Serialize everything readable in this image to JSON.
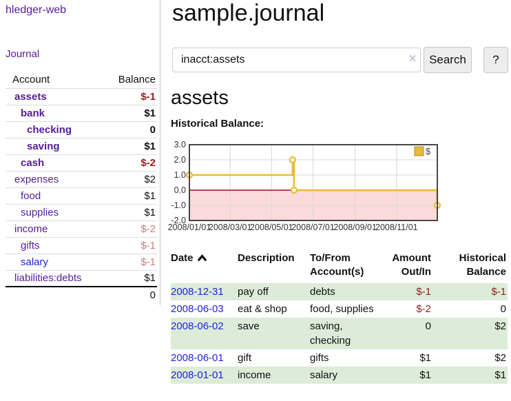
{
  "app": {
    "title": "hledger-web"
  },
  "nav": {
    "journal": "Journal"
  },
  "sidebar": {
    "headers": {
      "account": "Account",
      "balance": "Balance"
    },
    "accounts": [
      {
        "name": "assets",
        "depth": 0,
        "bold": true,
        "balance": "$-1",
        "neg": "strong",
        "link_variant": "purple"
      },
      {
        "name": "bank",
        "depth": 1,
        "bold": true,
        "balance": "$1",
        "neg": "",
        "link_variant": "purple"
      },
      {
        "name": "checking",
        "depth": 2,
        "bold": true,
        "balance": "0",
        "neg": "",
        "link_variant": "purple"
      },
      {
        "name": "saving",
        "depth": 2,
        "bold": true,
        "balance": "$1",
        "neg": "",
        "link_variant": "purple"
      },
      {
        "name": "cash",
        "depth": 1,
        "bold": true,
        "balance": "$-2",
        "neg": "strong",
        "link_variant": "purple"
      },
      {
        "name": "expenses",
        "depth": 0,
        "bold": false,
        "balance": "$2",
        "neg": "",
        "link_variant": "purple"
      },
      {
        "name": "food",
        "depth": 1,
        "bold": false,
        "balance": "$1",
        "neg": "",
        "link_variant": "purple"
      },
      {
        "name": "supplies",
        "depth": 1,
        "bold": false,
        "balance": "$1",
        "neg": "",
        "link_variant": "purple"
      },
      {
        "name": "income",
        "depth": 0,
        "bold": false,
        "balance": "$-2",
        "neg": "soft",
        "link_variant": "purple"
      },
      {
        "name": "gifts",
        "depth": 1,
        "bold": false,
        "balance": "$-1",
        "neg": "soft",
        "link_variant": "purple"
      },
      {
        "name": "salary",
        "depth": 1,
        "bold": false,
        "balance": "$-1",
        "neg": "soft",
        "link_variant": "blue"
      },
      {
        "name": "liabilities:debts",
        "depth": 0,
        "bold": false,
        "balance": "$1",
        "neg": "",
        "link_variant": "purple"
      }
    ],
    "total": "0"
  },
  "header": {
    "title": "sample.journal"
  },
  "search": {
    "value": "inacct:assets",
    "clear_icon": "×",
    "button": "Search",
    "help_button": "?"
  },
  "account_page": {
    "heading": "assets",
    "chart_label": "Historical Balance:"
  },
  "chart_data": {
    "type": "line",
    "title": "Historical Balance",
    "legend": [
      {
        "label": "$",
        "color": "#e9bb32"
      }
    ],
    "legend_position": "top-right",
    "grid": true,
    "ylim": [
      -2,
      3
    ],
    "y_ticks": [
      3,
      2,
      1,
      0,
      -1,
      -2
    ],
    "y_tick_labels": [
      "3.0",
      "2.0",
      "1.0",
      "0.0",
      "-1.0",
      "-2.0"
    ],
    "x_range_days": [
      0,
      365
    ],
    "x_tick_days": [
      0,
      60,
      121,
      182,
      244,
      305
    ],
    "x_tick_labels": [
      "2008/01/01",
      "2008/03/01",
      "2008/05/01",
      "2008/07/01",
      "2008/09/01",
      "2008/11/01"
    ],
    "series": [
      {
        "name": "$",
        "color": "#e9bb32",
        "step": true,
        "points": [
          {
            "date": "2008-01-01",
            "day": 0,
            "value": 1
          },
          {
            "date": "2008-06-01",
            "day": 152,
            "value": 2
          },
          {
            "date": "2008-06-03",
            "day": 154,
            "value": 0
          },
          {
            "date": "2008-12-31",
            "day": 365,
            "value": -1
          }
        ]
      }
    ],
    "negative_region": {
      "fill": "#fadadb",
      "zero_line_color": "#9c1016"
    },
    "frame_color": "#474747",
    "grid_color": "#d8d8d8"
  },
  "register": {
    "headers": {
      "date": "Date",
      "description": "Description",
      "accounts": "To/From Account(s)",
      "amount": "Amount Out/In",
      "balance": "Historical Balance"
    },
    "rows": [
      {
        "date": "2008-12-31",
        "description": "pay off",
        "accounts": "debts",
        "amount": "$-1",
        "amount_neg": true,
        "balance": "$-1",
        "balance_neg": true
      },
      {
        "date": "2008-06-03",
        "description": "eat & shop",
        "accounts": "food, supplies",
        "amount": "$-2",
        "amount_neg": true,
        "balance": "0",
        "balance_neg": false
      },
      {
        "date": "2008-06-02",
        "description": "save",
        "accounts": "saving, checking",
        "amount": "0",
        "amount_neg": false,
        "balance": "$2",
        "balance_neg": false
      },
      {
        "date": "2008-06-01",
        "description": "gift",
        "accounts": "gifts",
        "amount": "$1",
        "amount_neg": false,
        "balance": "$2",
        "balance_neg": false
      },
      {
        "date": "2008-01-01",
        "description": "income",
        "accounts": "salary",
        "amount": "$1",
        "amount_neg": false,
        "balance": "$1",
        "balance_neg": false
      }
    ]
  },
  "colors": {
    "link_purple": "#541d96",
    "link_blue": "#2222dd",
    "negative_strong": "#a11c1c",
    "negative_soft": "#c87f78",
    "table_negative": "#8e1f1f",
    "row_green": "#dcecd9",
    "chart_line": "#e9bb32",
    "chart_negative_fill": "#fadadb",
    "chart_zero_line": "#9c1016"
  }
}
